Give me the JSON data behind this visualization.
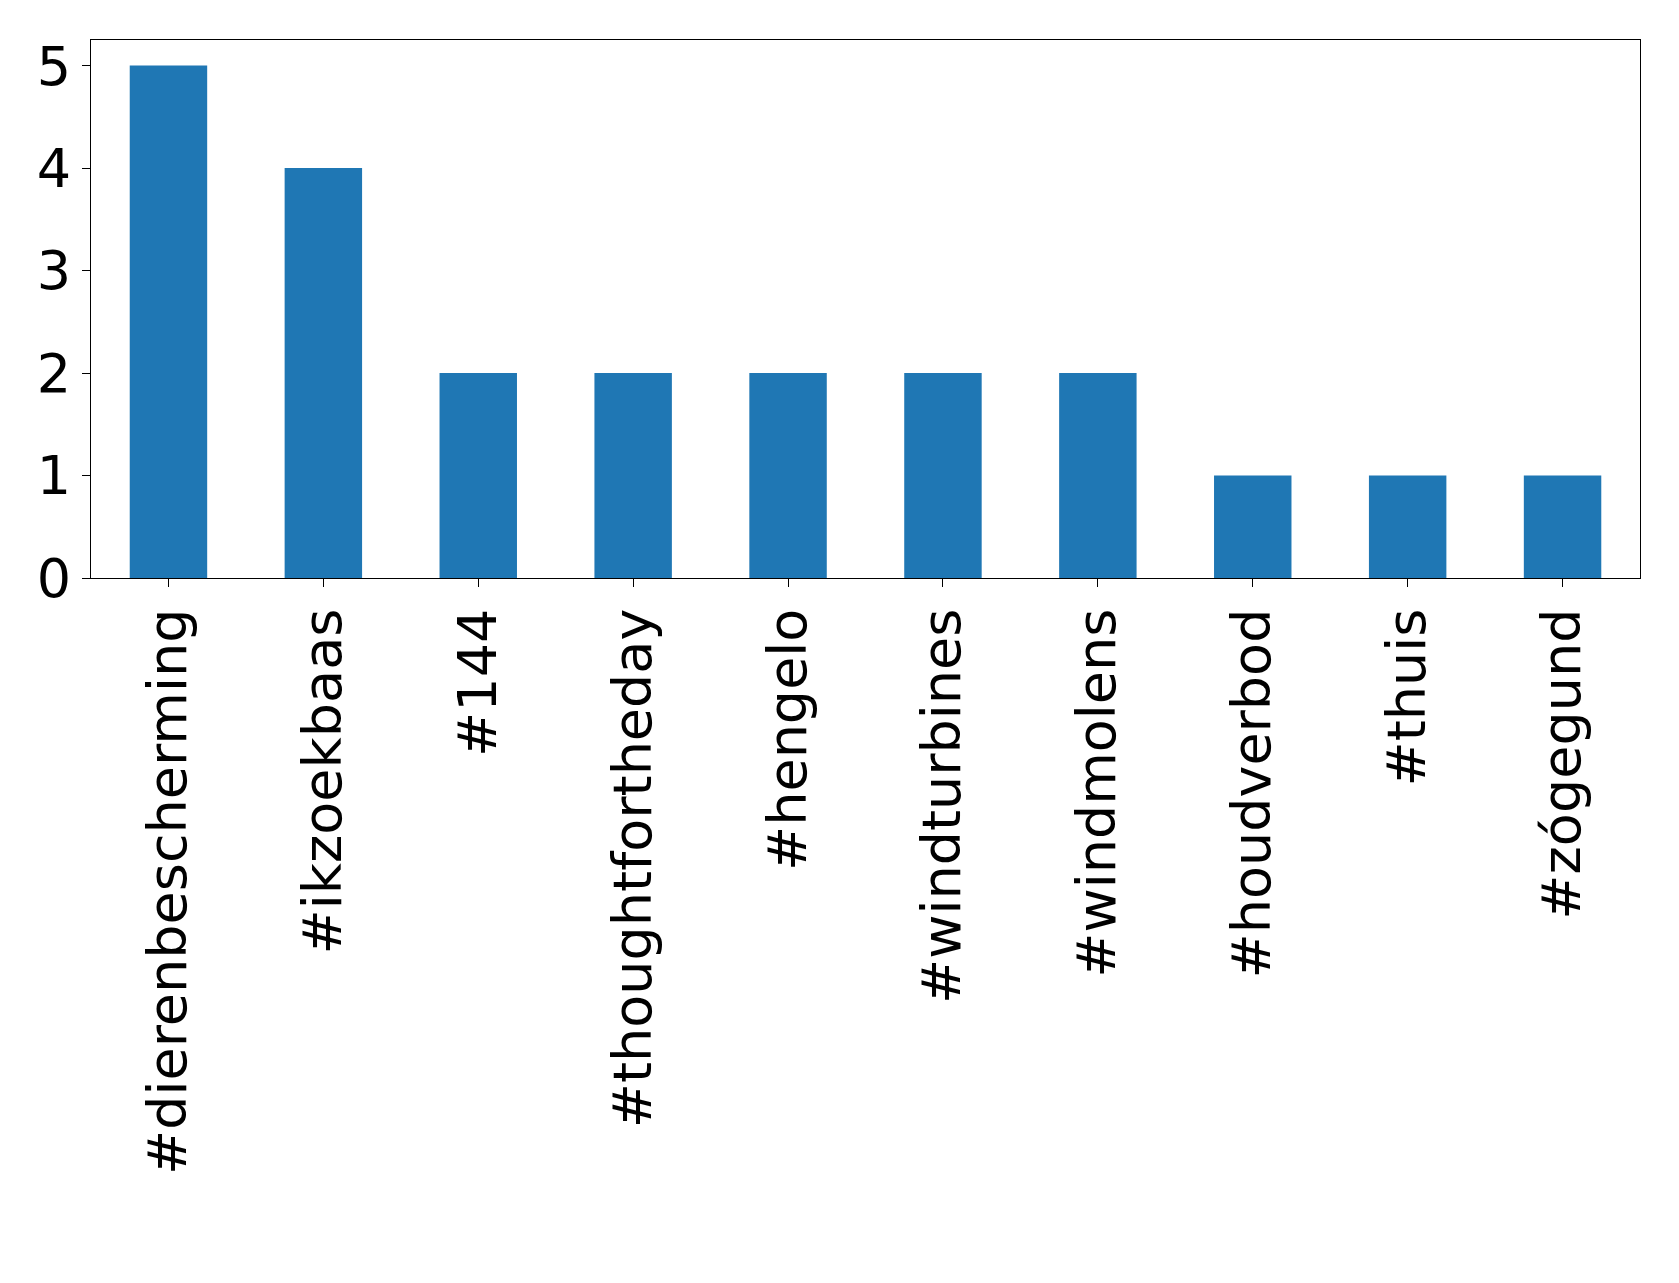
{
  "chart_data": {
    "type": "bar",
    "categories": [
      "#dierenbescherming",
      "#ikzoekbaas",
      "#144",
      "#thoughtfortheday",
      "#hengelo",
      "#windturbines",
      "#windmolens",
      "#houdverbod",
      "#thuis",
      "#zógegund"
    ],
    "values": [
      5,
      4,
      2,
      2,
      2,
      2,
      2,
      1,
      1,
      1
    ],
    "color": "#1f77b4",
    "ylim": [
      0,
      5.25
    ],
    "yticks": [
      0,
      1,
      2,
      3,
      4,
      5
    ]
  }
}
